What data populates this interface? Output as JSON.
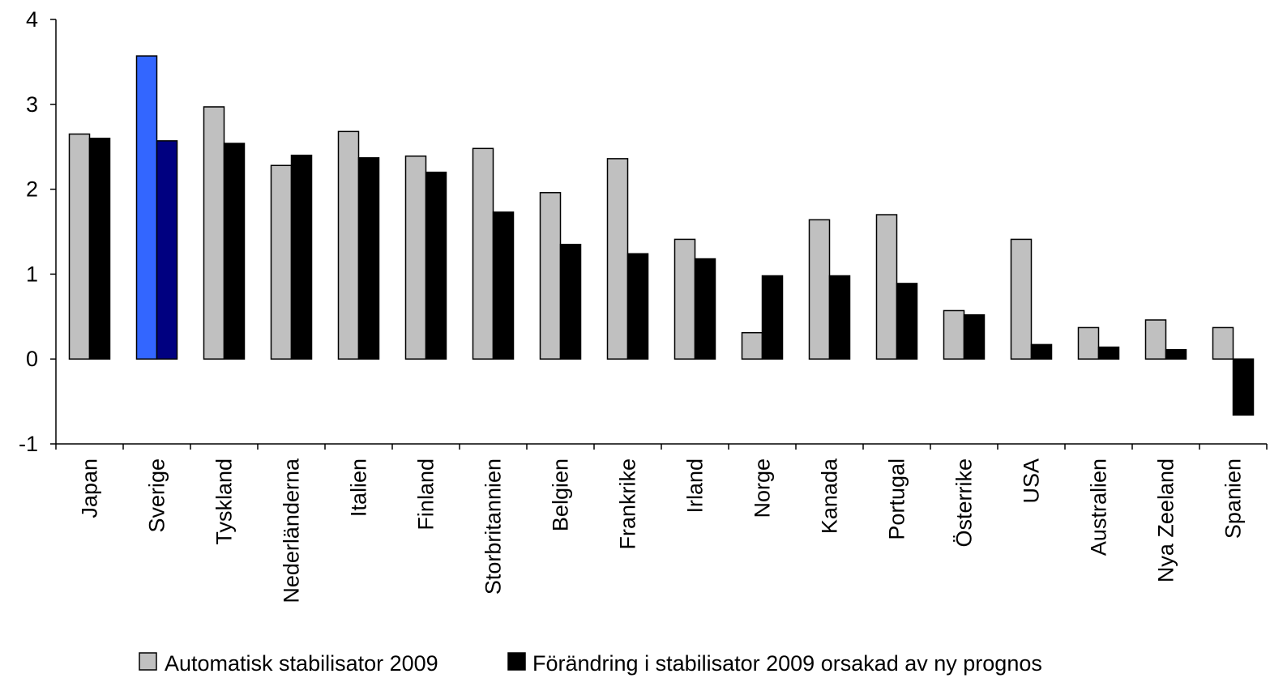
{
  "chart_data": {
    "type": "bar",
    "ylim": [
      -1,
      4
    ],
    "yticks": [
      -1,
      0,
      1,
      2,
      3,
      4
    ],
    "grid": false,
    "legend_position": "bottom",
    "categories": [
      "Japan",
      "Sverige",
      "Tyskland",
      "Nederländerna",
      "Italien",
      "Finland",
      "Storbritannien",
      "Belgien",
      "Frankrike",
      "Irland",
      "Norge",
      "Kanada",
      "Portugal",
      "Österrike",
      "USA",
      "Australien",
      "Nya Zeeland",
      "Spanien"
    ],
    "series": [
      {
        "name": "Automatisk stabilisator 2009",
        "color": "#c0c0c0",
        "values": [
          2.65,
          3.57,
          2.97,
          2.28,
          2.68,
          2.39,
          2.48,
          1.96,
          2.36,
          1.41,
          0.31,
          1.64,
          1.7,
          0.57,
          1.41,
          0.37,
          0.46,
          0.37
        ]
      },
      {
        "name": "Förändring i stabilisator 2009 orsakad av ny prognos",
        "color": "#000000",
        "values": [
          2.6,
          2.57,
          2.54,
          2.4,
          2.37,
          2.2,
          1.73,
          1.35,
          1.24,
          1.18,
          0.98,
          0.98,
          0.89,
          0.52,
          0.17,
          0.14,
          0.11,
          -0.66
        ]
      }
    ],
    "highlight": {
      "category": "Sverige",
      "colors": [
        "#3366ff",
        "#000080"
      ]
    }
  }
}
